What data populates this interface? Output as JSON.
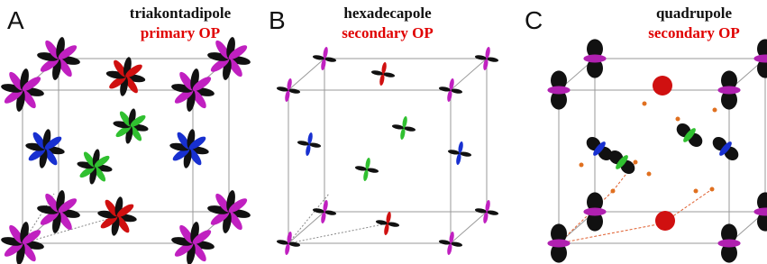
{
  "panels": [
    {
      "letter": "A",
      "title": "triakontadipole",
      "subtitle": "primary OP"
    },
    {
      "letter": "B",
      "title": "hexadecapole",
      "subtitle": "secondary OP"
    },
    {
      "letter": "C",
      "title": "quadrupole",
      "subtitle": "secondary OP"
    }
  ]
}
